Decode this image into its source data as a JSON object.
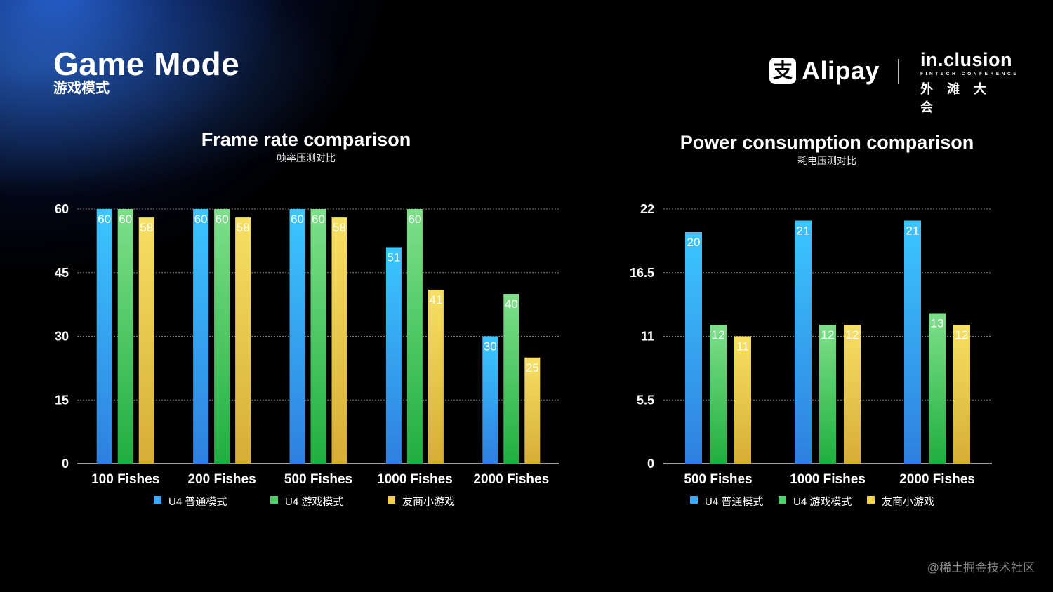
{
  "header": {
    "title": "Game Mode",
    "subtitle": "游戏模式"
  },
  "logos": {
    "alipay_mark": "支",
    "alipay_word": "Alipay",
    "inclusion_word": "in.clusion",
    "inclusion_tag": "FINTECH CONFERENCE",
    "inclusion_cn": "外滩大会"
  },
  "watermark": "@稀土掘金技术社区",
  "colors": {
    "series_blue": "#3aa8ff",
    "series_green": "#4fcf6a",
    "series_yellow": "#f2d14e",
    "background": "#000000"
  },
  "chart_data": [
    {
      "type": "bar",
      "title": "Frame rate comparison",
      "subtitle": "帧率压测对比",
      "categories": [
        "100 Fishes",
        "200 Fishes",
        "500 Fishes",
        "1000 Fishes",
        "2000 Fishes"
      ],
      "series": [
        {
          "name": "U4 普通模式",
          "values": [
            60,
            60,
            60,
            51,
            30
          ]
        },
        {
          "name": "U4 游戏模式",
          "values": [
            60,
            60,
            60,
            60,
            40
          ]
        },
        {
          "name": "友商小游戏",
          "values": [
            58,
            58,
            58,
            41,
            25
          ]
        }
      ],
      "ylim": [
        0,
        60
      ],
      "yticks": [
        "0",
        "15",
        "30",
        "45",
        "60"
      ],
      "grid": true,
      "legend": "bottom"
    },
    {
      "type": "bar",
      "title": "Power consumption comparison",
      "subtitle": "耗电压测对比",
      "categories": [
        "500 Fishes",
        "1000 Fishes",
        "2000 Fishes"
      ],
      "series": [
        {
          "name": "U4 普通模式",
          "values": [
            20,
            21,
            21
          ]
        },
        {
          "name": "U4 游戏模式",
          "values": [
            12,
            12,
            13
          ]
        },
        {
          "name": "友商小游戏",
          "values": [
            11,
            12,
            12
          ]
        }
      ],
      "ylim": [
        0,
        22
      ],
      "yticks": [
        "0",
        "5.5",
        "11",
        "16.5",
        "22"
      ],
      "grid": true,
      "legend": "bottom"
    }
  ]
}
